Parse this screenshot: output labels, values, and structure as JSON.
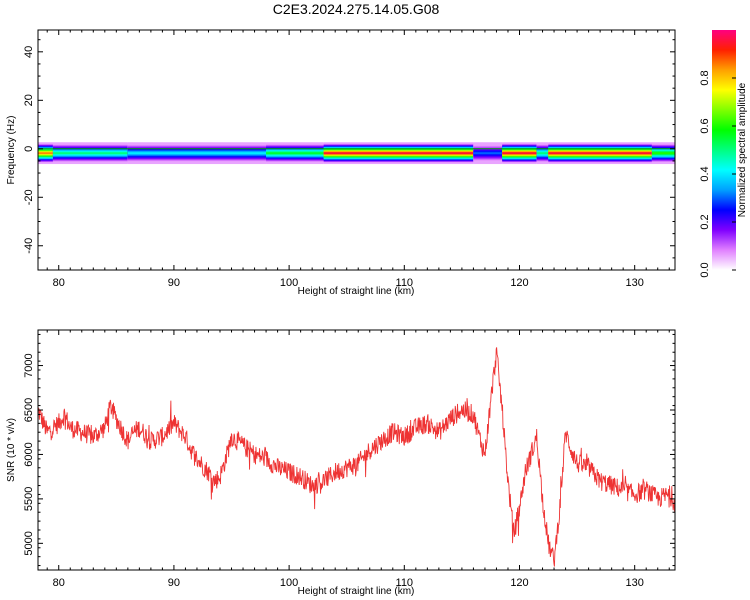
{
  "title": "C2E3.2024.275.14.05.G08",
  "chart_data": [
    {
      "type": "heatmap",
      "panel": "top",
      "xlabel": "Height of straight line (km)",
      "ylabel": "Frequency (Hz)",
      "xlim": [
        78.2,
        133.5
      ],
      "ylim": [
        -50,
        49
      ],
      "x_ticks": [
        80,
        90,
        100,
        110,
        120,
        130
      ],
      "y_ticks": [
        40,
        20,
        0,
        -20,
        -40
      ],
      "colorbar": {
        "label": "Normalized spectral amplitude",
        "range": [
          0,
          1
        ],
        "ticks": [
          0.0,
          0.2,
          0.4,
          0.6,
          0.8
        ],
        "colors": [
          "#ffffff",
          "#e080ff",
          "#8000ff",
          "#0000ff",
          "#00a0ff",
          "#00ffff",
          "#00ff80",
          "#00ff00",
          "#80ff00",
          "#ffff00",
          "#ffa000",
          "#ff2000",
          "#ff0080"
        ]
      },
      "band": {
        "center_hz": -1.8,
        "core_half_width_hz": 1.2,
        "halo_half_width_hz": 4.5,
        "segments": [
          {
            "x": [
              78.2,
              79.5
            ],
            "peak": 0.85
          },
          {
            "x": [
              79.5,
              86.0
            ],
            "peak": 0.5
          },
          {
            "x": [
              86.0,
              98.0
            ],
            "peak": 0.4
          },
          {
            "x": [
              98.0,
              103.0
            ],
            "peak": 0.55
          },
          {
            "x": [
              103.0,
              116.0
            ],
            "peak": 0.95
          },
          {
            "x": [
              116.0,
              118.5
            ],
            "peak": 0.3
          },
          {
            "x": [
              118.5,
              121.5
            ],
            "peak": 0.95
          },
          {
            "x": [
              121.5,
              122.5
            ],
            "peak": 0.5
          },
          {
            "x": [
              122.5,
              131.5
            ],
            "peak": 0.95
          },
          {
            "x": [
              131.5,
              133.5
            ],
            "peak": 0.6
          }
        ]
      }
    },
    {
      "type": "line",
      "panel": "bottom",
      "xlabel": "Height of straight line (km)",
      "ylabel": "SNR (10 * v/v)",
      "xlim": [
        78.2,
        133.5
      ],
      "ylim": [
        4700,
        7400
      ],
      "x_ticks": [
        80,
        90,
        100,
        110,
        120,
        130
      ],
      "y_ticks": [
        5000,
        5500,
        6000,
        6500,
        7000
      ],
      "color": "#ee3333",
      "series": [
        {
          "x": [
            78.2,
            79.0,
            80.0,
            80.5,
            81.0,
            82.0,
            83.0,
            84.0,
            84.5,
            85.0,
            86.0,
            86.5,
            87.0,
            88.0,
            89.0,
            90.0,
            91.0,
            91.5,
            92.0,
            93.0,
            93.5,
            94.0,
            94.5,
            95.0,
            96.0,
            97.0,
            98.0,
            99.0,
            100.0,
            101.0,
            102.0,
            103.0,
            104.0,
            105.0,
            106.0,
            107.0,
            108.0,
            109.0,
            110.0,
            111.0,
            112.0,
            113.0,
            114.0,
            115.0,
            116.0,
            116.5,
            117.0,
            117.5,
            118.0,
            118.5,
            119.0,
            119.5,
            120.0,
            120.5,
            121.0,
            121.5,
            122.0,
            122.5,
            123.0,
            123.5,
            124.0,
            124.5,
            125.0,
            126.0,
            127.0,
            128.0,
            129.0,
            130.0,
            131.0,
            132.0,
            133.0,
            133.5
          ],
          "y": [
            6500,
            6250,
            6350,
            6450,
            6300,
            6250,
            6200,
            6300,
            6550,
            6400,
            6150,
            6250,
            6300,
            6150,
            6200,
            6350,
            6200,
            6050,
            5950,
            5800,
            5700,
            5750,
            5950,
            6200,
            6100,
            6000,
            5950,
            5850,
            5800,
            5750,
            5650,
            5700,
            5800,
            5850,
            5900,
            6050,
            6150,
            6250,
            6200,
            6300,
            6350,
            6250,
            6400,
            6500,
            6450,
            6200,
            6000,
            6600,
            7150,
            6500,
            5700,
            5100,
            5400,
            5800,
            6000,
            6200,
            5500,
            5000,
            4800,
            5400,
            6250,
            6050,
            5900,
            5850,
            5700,
            5650,
            5600,
            5550,
            5600,
            5500,
            5550,
            5450
          ],
          "noise_amplitude": 110
        }
      ]
    }
  ]
}
